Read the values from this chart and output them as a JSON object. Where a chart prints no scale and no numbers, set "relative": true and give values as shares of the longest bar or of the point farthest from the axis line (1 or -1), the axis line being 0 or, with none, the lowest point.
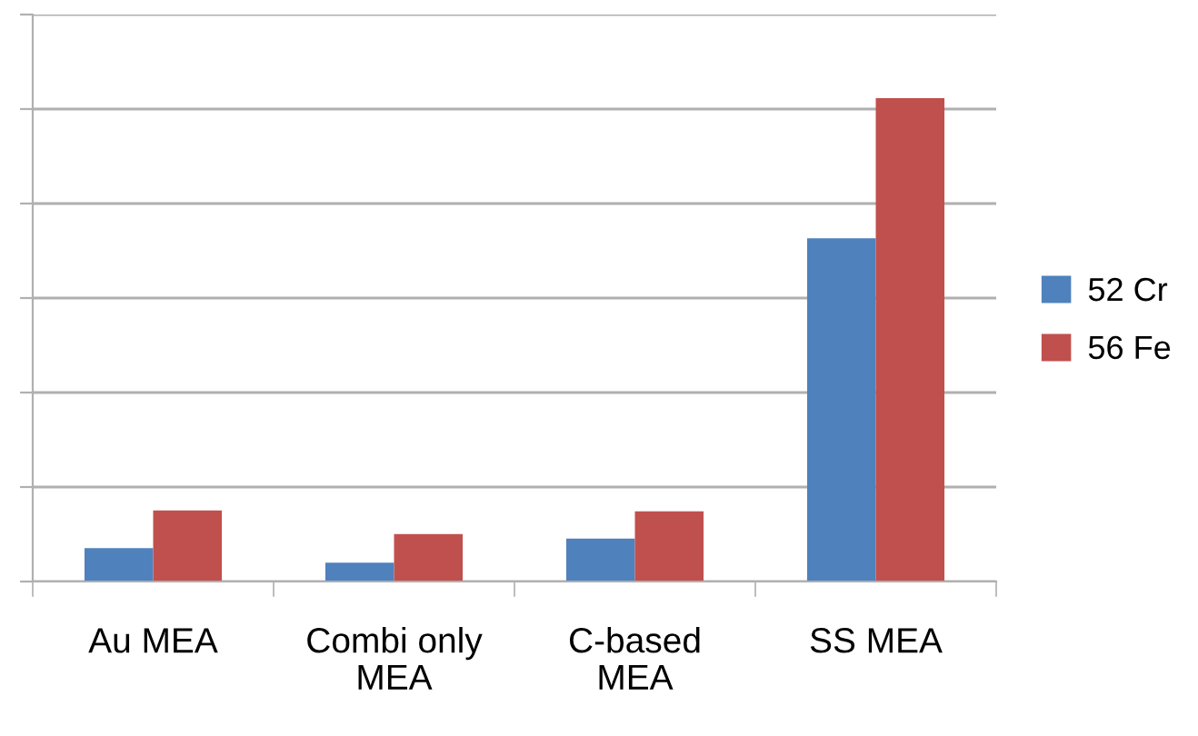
{
  "chart_data": {
    "type": "bar",
    "relative": true,
    "categories": [
      "Au MEA",
      "Combi only MEA",
      "C-based MEA",
      "SS MEA"
    ],
    "series": [
      {
        "name": "52 Cr",
        "color": "#4f81bd",
        "values": [
          0.069,
          0.039,
          0.089,
          0.71
        ]
      },
      {
        "name": "56 Fe",
        "color": "#c0504d",
        "values": [
          0.147,
          0.098,
          0.145,
          1
        ]
      }
    ],
    "grid": "y",
    "legend": "right"
  }
}
